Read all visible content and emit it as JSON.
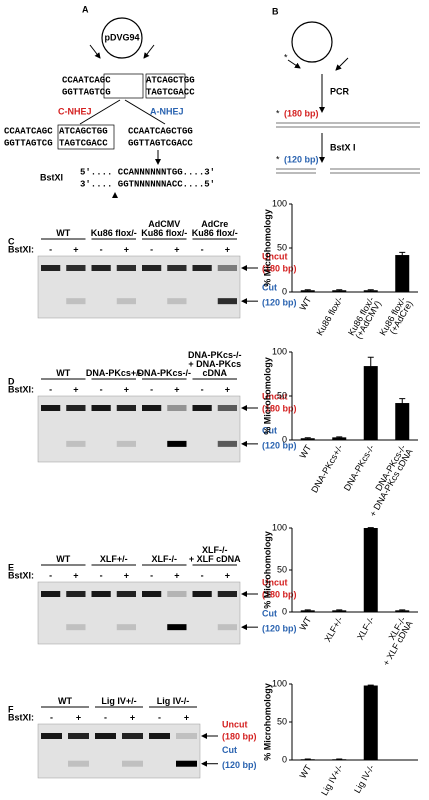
{
  "panel_a": {
    "label": "A",
    "plasmid": "pDVG94",
    "seq_left": [
      "CCAATCAGC",
      "GGTTAGTCG"
    ],
    "seq_right": [
      "ATCAGCTGG",
      "TAGTCGACC"
    ],
    "c_nhej": "C-NHEJ",
    "a_nhej": "A-NHEJ",
    "product_c": [
      "CCAATCAGC",
      "GGTTAGTCG",
      "ATCAGCTGG",
      "TAGTCGACC"
    ],
    "product_a": [
      "CCAATCAGCTGG",
      "GGTTAGTCGACC"
    ],
    "enzyme": "BstXI",
    "site": [
      "5'.... CCANNNNNNTGG....3'",
      "3'.... GGTNNNNNNACC....5'"
    ]
  },
  "panel_b": {
    "label": "B",
    "pcr": "PCR",
    "star": "*",
    "uncut_size": "(180 bp)",
    "enzyme": "BstX I",
    "cut_size": "(120 bp)"
  },
  "gels": [
    {
      "label": "C",
      "lanes": [
        "WT",
        "Ku86 flox/-",
        "AdCMV\nKu86 flox/-",
        "AdCre\nKu86 flox/-"
      ],
      "bstxi": "BstXI:",
      "signs": [
        "-",
        "+",
        "-",
        "+",
        "-",
        "+",
        "-",
        "+"
      ],
      "uncut": "Uncut",
      "uncut_size": "(180 bp)",
      "cut": "Cut",
      "cut_size": "(120 bp)"
    },
    {
      "label": "D",
      "lanes": [
        "WT",
        "DNA-PKcs+/-",
        "DNA-PKcs-/-",
        "DNA-PKcs-/-\n+ DNA-PKcs\ncDNA"
      ],
      "bstxi": "BstXI:",
      "signs": [
        "-",
        "+",
        "-",
        "+",
        "-",
        "+",
        "-",
        "+"
      ],
      "uncut": "Uncut",
      "uncut_size": "(180 bp)",
      "cut": "Cut",
      "cut_size": "(120 bp)"
    },
    {
      "label": "E",
      "lanes": [
        "WT",
        "XLF+/-",
        "XLF-/-",
        "XLF-/-\n+ XLF cDNA"
      ],
      "bstxi": "BstXI:",
      "signs": [
        "-",
        "+",
        "-",
        "+",
        "-",
        "+",
        "-",
        "+"
      ],
      "uncut": "Uncut",
      "uncut_size": "(180 bp)",
      "cut": "Cut",
      "cut_size": "(120 bp)"
    },
    {
      "label": "F",
      "lanes": [
        "WT",
        "Lig IV+/-",
        "Lig IV-/-"
      ],
      "bstxi": "BstXI:",
      "signs": [
        "-",
        "+",
        "-",
        "+",
        "-",
        "+"
      ],
      "uncut": "Uncut",
      "uncut_size": "(180 bp)",
      "cut": "Cut",
      "cut_size": "(120 bp)"
    }
  ],
  "chart_data": [
    {
      "type": "bar",
      "y_label": "% Microhomology",
      "categories": [
        "WT",
        "Ku86 flox/-",
        "Ku86 flox/-\n(+AdCMV)",
        "Ku86 flox/-\n(+AdCre)"
      ],
      "values": [
        2,
        2,
        2,
        42
      ],
      "errors": [
        0.5,
        0.5,
        0.5,
        3
      ],
      "color": "#000000",
      "ylim": [
        0,
        100
      ],
      "yticks": [
        0,
        50,
        100
      ]
    },
    {
      "type": "bar",
      "y_label": "% Microhomology",
      "categories": [
        "WT",
        "DNA-PKcs+/-",
        "DNA-PKcs-/-",
        "DNA-PKcs-/-\n+ DNA-PKcs cDNA"
      ],
      "values": [
        2,
        3,
        84,
        42
      ],
      "errors": [
        0.5,
        0.5,
        10,
        5
      ],
      "color": "#000000",
      "ylim": [
        0,
        100
      ],
      "yticks": [
        0,
        50,
        100
      ]
    },
    {
      "type": "bar",
      "y_label": "% Microhomology",
      "categories": [
        "WT",
        "XLF+/-",
        "XLF-/-",
        "XLF-/-\n+ XLF cDNA"
      ],
      "values": [
        2,
        2,
        100,
        2
      ],
      "errors": [
        0.5,
        0.5,
        0.5,
        0.5
      ],
      "color": "#000000",
      "ylim": [
        0,
        100
      ],
      "yticks": [
        0,
        50,
        100
      ]
    },
    {
      "type": "bar",
      "y_label": "% Microhomology",
      "categories": [
        "WT",
        "Lig IV+/-",
        "Lig IV-/-"
      ],
      "values": [
        1,
        1,
        98
      ],
      "errors": [
        0.3,
        0.3,
        0.5
      ],
      "color": "#000000",
      "ylim": [
        0,
        100
      ],
      "yticks": [
        0,
        50,
        100
      ]
    }
  ]
}
